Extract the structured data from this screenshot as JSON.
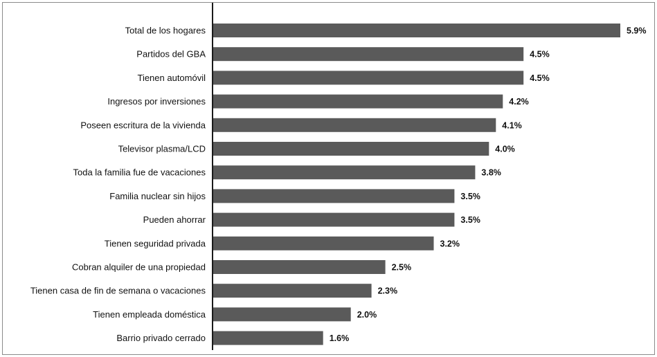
{
  "chart_data": {
    "type": "bar",
    "orientation": "horizontal",
    "categories": [
      "Total de los hogares",
      "Partidos del GBA",
      "Tienen automóvil",
      "Ingresos por inversiones",
      "Poseen escritura de la vivienda",
      "Televisor plasma/LCD",
      "Toda la familia fue de vacaciones",
      "Familia nuclear sin hijos",
      "Pueden ahorrar",
      "Tienen seguridad privada",
      "Cobran alquiler de una propiedad",
      "Tienen casa de fin de semana o vacaciones",
      "Tienen empleada doméstica",
      "Barrio privado cerrado"
    ],
    "values": [
      5.9,
      4.5,
      4.5,
      4.2,
      4.1,
      4.0,
      3.8,
      3.5,
      3.5,
      3.2,
      2.5,
      2.3,
      2.0,
      1.6
    ],
    "value_labels": [
      "5.9%",
      "4.5%",
      "4.5%",
      "4.2%",
      "4.1%",
      "4.0%",
      "3.8%",
      "3.5%",
      "3.5%",
      "3.2%",
      "2.5%",
      "2.3%",
      "2.0%",
      "1.6%"
    ],
    "xlim": [
      0,
      5.9
    ],
    "bar_color": "#5a5a5a",
    "grid": false,
    "legend": "none"
  }
}
